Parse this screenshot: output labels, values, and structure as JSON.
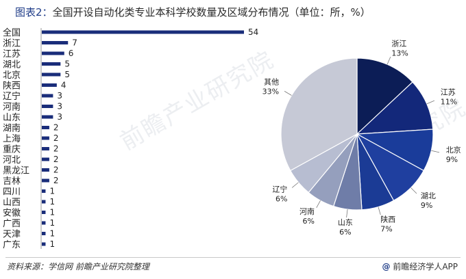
{
  "title": {
    "prefix": "图表2：",
    "text": "全国开设自动化类专业本科学校数量及区域分布情况（单位：所，%）"
  },
  "watermarks": [
    "前瞻产业研究院",
    "前瞻产业研究院"
  ],
  "colors": {
    "bar": "#1a2d7a",
    "pie": [
      "#0c1d56",
      "#13287a",
      "#1a3c9a",
      "#1f3f9f",
      "#1b3b95",
      "#6f7da8",
      "#959fbd",
      "#b7bdd1",
      "#c6c9d6"
    ]
  },
  "chart_data": [
    {
      "type": "bar",
      "orientation": "horizontal",
      "categories": [
        "全国",
        "浙江",
        "江苏",
        "湖北",
        "北京",
        "陕西",
        "辽宁",
        "河南",
        "山东",
        "湖南",
        "上海",
        "重庆",
        "河北",
        "黑龙江",
        "吉林",
        "四川",
        "山西",
        "安徽",
        "广西",
        "天津",
        "广东"
      ],
      "values": [
        54,
        7,
        6,
        5,
        5,
        4,
        3,
        3,
        3,
        2,
        2,
        2,
        2,
        2,
        2,
        1,
        1,
        1,
        1,
        1,
        1
      ],
      "data_labels": [
        "54",
        "7",
        "6",
        "5",
        "5",
        "4",
        "3",
        "3",
        "3",
        "2",
        "2",
        "2",
        "2",
        "2",
        "2",
        "1",
        "1",
        "1",
        "1",
        "1",
        "1"
      ],
      "xlim": [
        0,
        54
      ],
      "grid": false
    },
    {
      "type": "pie",
      "categories": [
        "浙江",
        "江苏",
        "北京",
        "湖北",
        "陕西",
        "山东",
        "河南",
        "辽宁",
        "其他"
      ],
      "values": [
        13,
        11,
        9,
        9,
        7,
        6,
        6,
        6,
        33
      ],
      "labels": [
        "13%",
        "11%",
        "9%",
        "9%",
        "7%",
        "6%",
        "6%",
        "6%",
        "33%"
      ],
      "start": "top",
      "direction": "clockwise"
    }
  ],
  "footer": {
    "source": "资料来源：学信网 前瞻产业研究院整理",
    "brand_icon": "@",
    "brand_text": "前瞻经济学人APP"
  }
}
